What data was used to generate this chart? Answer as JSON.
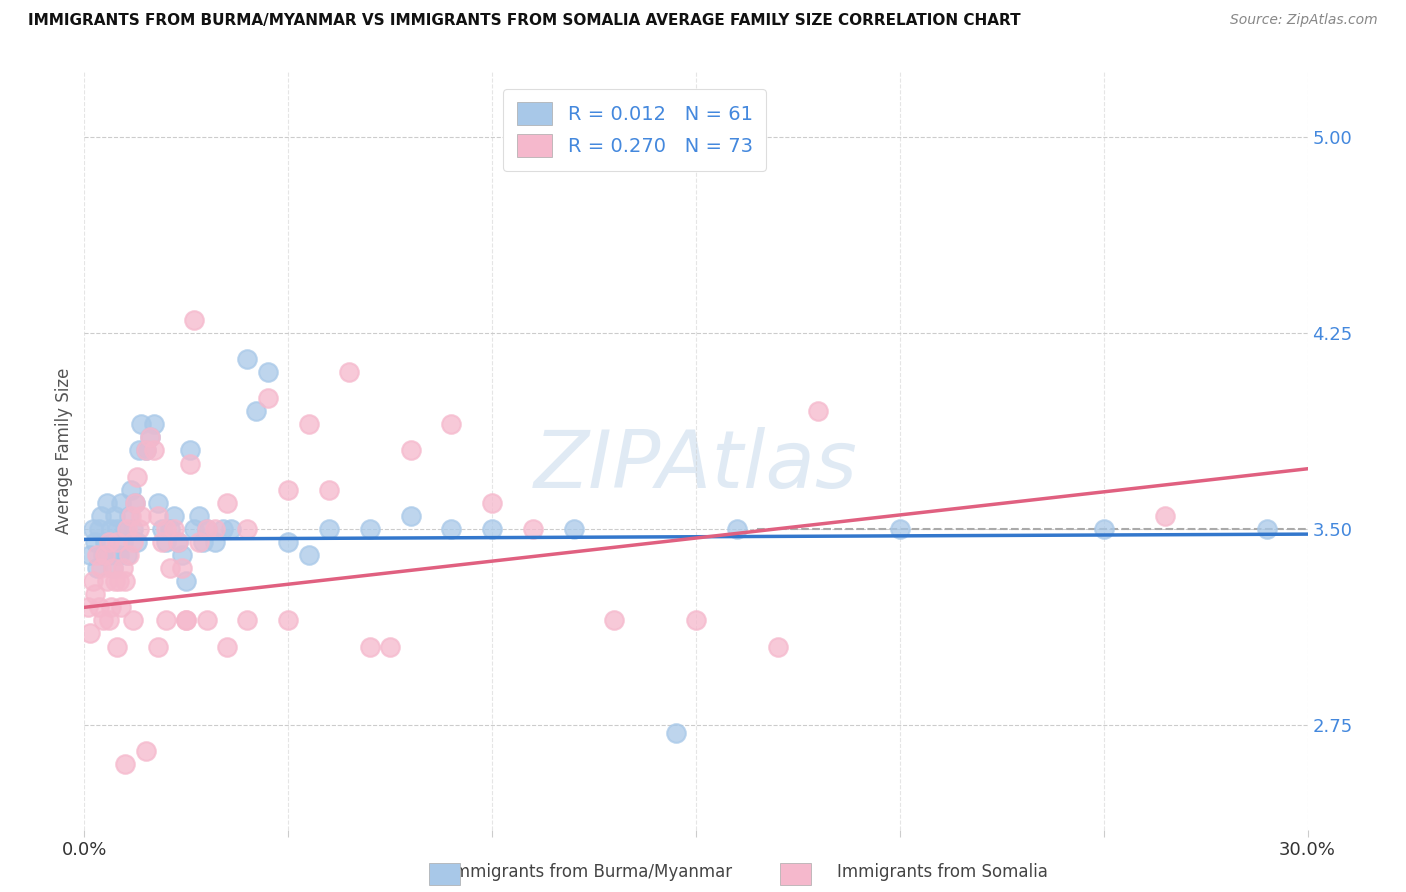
{
  "title": "IMMIGRANTS FROM BURMA/MYANMAR VS IMMIGRANTS FROM SOMALIA AVERAGE FAMILY SIZE CORRELATION CHART",
  "source": "Source: ZipAtlas.com",
  "ylabel": "Average Family Size",
  "watermark": "ZIPAtlas",
  "xlim": [
    0.0,
    30.0
  ],
  "ylim": [
    2.35,
    5.25
  ],
  "yticks": [
    2.75,
    3.5,
    4.25,
    5.0
  ],
  "xticks": [
    0.0,
    5.0,
    10.0,
    15.0,
    20.0,
    25.0,
    30.0
  ],
  "legend_line1": "R = 0.012   N = 61",
  "legend_line2": "R = 0.270   N = 73",
  "color_burma": "#a8c8e8",
  "color_somalia": "#f5b8cc",
  "color_blue": "#3377cc",
  "color_pink": "#e06080",
  "color_axis": "#4488dd",
  "burma_x": [
    0.15,
    0.2,
    0.25,
    0.3,
    0.35,
    0.4,
    0.45,
    0.5,
    0.55,
    0.6,
    0.65,
    0.7,
    0.75,
    0.8,
    0.85,
    0.9,
    0.95,
    1.0,
    1.05,
    1.1,
    1.15,
    1.2,
    1.25,
    1.3,
    1.35,
    1.4,
    1.5,
    1.6,
    1.7,
    1.8,
    1.9,
    2.0,
    2.1,
    2.2,
    2.3,
    2.4,
    2.5,
    2.6,
    2.7,
    2.8,
    2.9,
    3.0,
    3.2,
    3.4,
    3.6,
    4.0,
    4.2,
    4.5,
    5.0,
    5.5,
    6.0,
    7.0,
    8.0,
    9.0,
    10.0,
    12.0,
    14.5,
    16.0,
    20.0,
    25.0,
    29.0
  ],
  "burma_y": [
    3.4,
    3.5,
    3.45,
    3.35,
    3.5,
    3.55,
    3.4,
    3.45,
    3.6,
    3.4,
    3.5,
    3.35,
    3.55,
    3.5,
    3.4,
    3.6,
    3.45,
    3.5,
    3.4,
    3.55,
    3.65,
    3.5,
    3.6,
    3.45,
    3.8,
    3.9,
    3.8,
    3.85,
    3.9,
    3.6,
    3.5,
    3.45,
    3.5,
    3.55,
    3.45,
    3.4,
    3.3,
    3.8,
    3.5,
    3.55,
    3.45,
    3.5,
    3.45,
    3.5,
    3.5,
    4.15,
    3.95,
    4.1,
    3.45,
    3.4,
    3.5,
    3.5,
    3.55,
    3.5,
    3.5,
    3.5,
    2.72,
    3.5,
    3.5,
    3.5,
    3.5
  ],
  "somalia_x": [
    0.1,
    0.15,
    0.2,
    0.25,
    0.3,
    0.35,
    0.4,
    0.45,
    0.5,
    0.55,
    0.6,
    0.65,
    0.7,
    0.75,
    0.8,
    0.85,
    0.9,
    0.95,
    1.0,
    1.05,
    1.1,
    1.15,
    1.2,
    1.25,
    1.3,
    1.35,
    1.4,
    1.5,
    1.6,
    1.7,
    1.8,
    1.9,
    2.0,
    2.1,
    2.2,
    2.3,
    2.4,
    2.5,
    2.6,
    2.7,
    2.8,
    3.0,
    3.2,
    3.5,
    4.0,
    4.5,
    5.0,
    5.5,
    6.0,
    6.5,
    7.0,
    7.5,
    8.0,
    9.0,
    10.0,
    11.0,
    13.0,
    15.0,
    17.0,
    18.0,
    26.5,
    1.5,
    2.0,
    1.0,
    0.6,
    0.8,
    1.2,
    1.8,
    2.5,
    3.0,
    3.5,
    4.0,
    5.0
  ],
  "somalia_y": [
    3.2,
    3.1,
    3.3,
    3.25,
    3.4,
    3.2,
    3.35,
    3.15,
    3.4,
    3.3,
    3.45,
    3.2,
    3.35,
    3.3,
    3.45,
    3.3,
    3.2,
    3.35,
    3.3,
    3.5,
    3.4,
    3.55,
    3.45,
    3.6,
    3.7,
    3.5,
    3.55,
    3.8,
    3.85,
    3.8,
    3.55,
    3.45,
    3.5,
    3.35,
    3.5,
    3.45,
    3.35,
    3.15,
    3.75,
    4.3,
    3.45,
    3.5,
    3.5,
    3.6,
    3.5,
    4.0,
    3.65,
    3.9,
    3.65,
    4.1,
    3.05,
    3.05,
    3.8,
    3.9,
    3.6,
    3.5,
    3.15,
    3.15,
    3.05,
    3.95,
    3.55,
    2.65,
    3.15,
    2.6,
    3.15,
    3.05,
    3.15,
    3.05,
    3.15,
    3.15,
    3.05,
    3.15,
    3.15
  ],
  "burma_trend": [
    0.0,
    30.0,
    3.46,
    3.48
  ],
  "somalia_trend": [
    0.0,
    30.0,
    3.2,
    3.73
  ],
  "dash_line_x": [
    16.5,
    30.0
  ],
  "dash_line_y": [
    3.5,
    3.5
  ]
}
